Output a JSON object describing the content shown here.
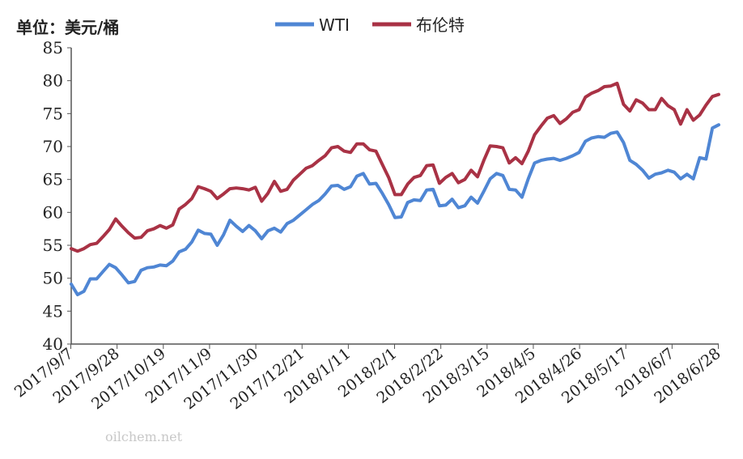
{
  "chart_data": {
    "type": "line",
    "unit_label": "单位：美元/桶",
    "ylim": [
      40,
      85
    ],
    "yticks": [
      "40",
      "45",
      "50",
      "55",
      "60",
      "65",
      "70",
      "75",
      "80",
      "85"
    ],
    "x_tick_labels": [
      "2017/9/7",
      "2017/9/28",
      "2017/10/19",
      "2017/11/9",
      "2017/11/30",
      "2017/12/21",
      "2018/1/11",
      "2018/2/1",
      "2018/2/22",
      "2018/3/15",
      "2018/4/5",
      "2018/4/26",
      "2018/5/17",
      "2018/6/7",
      "2018/6/28"
    ],
    "legend_position": "top",
    "grid": false,
    "series": [
      {
        "name": "WTI",
        "color": "#4f86d4",
        "values": [
          49.1,
          47.5,
          48.0,
          49.9,
          49.9,
          51.0,
          52.1,
          51.6,
          50.5,
          49.3,
          49.5,
          51.2,
          51.6,
          51.7,
          52.0,
          51.9,
          52.6,
          54.0,
          54.4,
          55.5,
          57.3,
          56.8,
          56.7,
          55.0,
          56.6,
          58.8,
          57.9,
          57.1,
          58.0,
          57.2,
          56.0,
          57.2,
          57.6,
          57.0,
          58.3,
          58.8,
          59.6,
          60.4,
          61.2,
          61.8,
          62.8,
          64.0,
          64.1,
          63.5,
          63.9,
          65.5,
          65.9,
          64.3,
          64.4,
          62.9,
          61.2,
          59.2,
          59.3,
          61.5,
          61.9,
          61.8,
          63.4,
          63.5,
          61.0,
          61.1,
          62.0,
          60.7,
          61.0,
          62.3,
          61.4,
          63.2,
          65.1,
          65.9,
          65.6,
          63.5,
          63.4,
          62.3,
          65.1,
          67.5,
          67.9,
          68.1,
          68.2,
          67.9,
          68.2,
          68.6,
          69.1,
          70.8,
          71.3,
          71.5,
          71.4,
          72.0,
          72.2,
          70.6,
          67.9,
          67.3,
          66.4,
          65.2,
          65.8,
          66.0,
          66.4,
          66.1,
          65.1,
          65.8,
          65.1,
          68.3,
          68.1,
          72.8,
          73.3
        ],
        "values_note": "weekly-ish sampled closing prices, USD/bbl"
      },
      {
        "name": "布伦特",
        "color": "#a93245",
        "values": [
          54.5,
          54.1,
          54.5,
          55.1,
          55.3,
          56.3,
          57.4,
          59.0,
          57.9,
          56.9,
          56.1,
          56.2,
          57.2,
          57.5,
          58.0,
          57.6,
          58.1,
          60.5,
          61.2,
          62.1,
          63.9,
          63.6,
          63.2,
          62.1,
          62.8,
          63.6,
          63.7,
          63.6,
          63.4,
          63.8,
          61.7,
          62.9,
          64.7,
          63.2,
          63.5,
          64.9,
          65.8,
          66.7,
          67.1,
          67.9,
          68.6,
          69.8,
          70.0,
          69.3,
          69.1,
          70.4,
          70.4,
          69.5,
          69.3,
          67.3,
          65.3,
          62.7,
          62.7,
          64.3,
          65.3,
          65.6,
          67.1,
          67.2,
          64.4,
          65.3,
          65.9,
          64.5,
          65.0,
          66.4,
          65.4,
          67.9,
          70.1,
          70.0,
          69.8,
          67.5,
          68.3,
          67.4,
          69.3,
          71.8,
          73.1,
          74.3,
          74.7,
          73.5,
          74.2,
          75.2,
          75.6,
          77.5,
          78.1,
          78.5,
          79.1,
          79.2,
          79.6,
          76.4,
          75.4,
          77.1,
          76.6,
          75.6,
          75.6,
          77.3,
          76.2,
          75.6,
          73.4,
          75.6,
          74.0,
          74.8,
          76.3,
          77.6,
          77.9
        ]
      }
    ]
  },
  "watermark": {
    "text": "oilchem.net"
  }
}
